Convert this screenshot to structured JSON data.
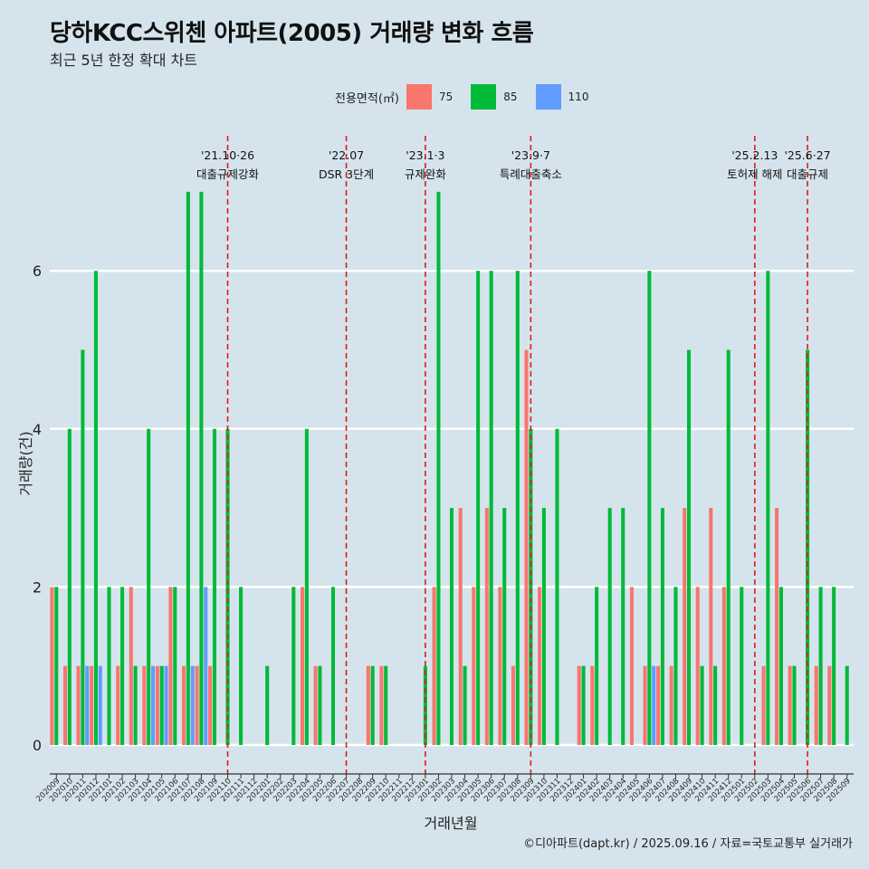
{
  "title": "당하KCC스위첸 아파트(2005) 거래량 변화 흐름",
  "subtitle": "최근 5년 한정 확대 차트",
  "caption": "©디아파트(dapt.kr) / 2025.09.16 / 자료=국토교통부 실거래가",
  "legend": {
    "title": "전용면적(㎡)",
    "items": [
      {
        "label": "75",
        "color": "#f8766d"
      },
      {
        "label": "85",
        "color": "#00ba38"
      },
      {
        "label": "110",
        "color": "#619cff"
      }
    ]
  },
  "chart_data": {
    "type": "bar",
    "xlabel": "거래년월",
    "ylabel": "거래량(건)",
    "ylim": [
      0,
      7
    ],
    "yticks": [
      0,
      2,
      4,
      6
    ],
    "grid": true,
    "legend_position": "top",
    "categories": [
      "202009",
      "202010",
      "202011",
      "202012",
      "202101",
      "202102",
      "202103",
      "202104",
      "202105",
      "202106",
      "202107",
      "202108",
      "202109",
      "202110",
      "202111",
      "202112",
      "202201",
      "202202",
      "202203",
      "202204",
      "202205",
      "202206",
      "202207",
      "202208",
      "202209",
      "202210",
      "202211",
      "202212",
      "202301",
      "202302",
      "202303",
      "202304",
      "202305",
      "202306",
      "202307",
      "202308",
      "202309",
      "202310",
      "202311",
      "202312",
      "202401",
      "202402",
      "202403",
      "202404",
      "202405",
      "202406",
      "202407",
      "202408",
      "202409",
      "202410",
      "202411",
      "202412",
      "202501",
      "202502",
      "202503",
      "202504",
      "202505",
      "202506",
      "202507",
      "202508",
      "202509"
    ],
    "series": [
      {
        "name": "75",
        "color": "#f8766d",
        "values": [
          2,
          1,
          1,
          1,
          0,
          1,
          2,
          1,
          1,
          2,
          1,
          1,
          1,
          0,
          0,
          0,
          0,
          0,
          0,
          2,
          1,
          0,
          0,
          0,
          1,
          1,
          0,
          0,
          0,
          2,
          0,
          3,
          2,
          3,
          2,
          1,
          5,
          2,
          0,
          0,
          1,
          1,
          0,
          0,
          2,
          1,
          1,
          1,
          3,
          2,
          3,
          2,
          0,
          0,
          1,
          3,
          1,
          0,
          1,
          1,
          0
        ]
      },
      {
        "name": "85",
        "color": "#00ba38",
        "values": [
          2,
          4,
          5,
          6,
          2,
          2,
          1,
          4,
          1,
          2,
          7,
          7,
          4,
          4,
          2,
          0,
          1,
          0,
          2,
          4,
          1,
          2,
          0,
          0,
          1,
          1,
          0,
          0,
          1,
          7,
          3,
          1,
          6,
          6,
          3,
          6,
          4,
          3,
          4,
          0,
          1,
          2,
          3,
          3,
          0,
          6,
          3,
          2,
          5,
          1,
          1,
          5,
          2,
          0,
          6,
          2,
          1,
          5,
          2,
          2,
          1
        ]
      },
      {
        "name": "110",
        "color": "#619cff",
        "values": [
          0,
          0,
          1,
          1,
          0,
          0,
          0,
          1,
          1,
          0,
          1,
          2,
          0,
          0,
          0,
          0,
          0,
          0,
          0,
          0,
          0,
          0,
          0,
          0,
          0,
          0,
          0,
          0,
          0,
          0,
          0,
          0,
          0,
          0,
          0,
          0,
          0,
          0,
          0,
          0,
          0,
          0,
          0,
          0,
          0,
          1,
          0,
          0,
          0,
          0,
          0,
          0,
          0,
          0,
          0,
          0,
          0,
          0,
          0,
          0,
          0
        ]
      }
    ],
    "annotations": [
      {
        "date": "'21.10·26",
        "label": "대출규제강화",
        "category": "202110"
      },
      {
        "date": "'22.07",
        "label": "DSR 3단계",
        "category": "202207"
      },
      {
        "date": "'23.1·3",
        "label": "규제완화",
        "category": "202301"
      },
      {
        "date": "'23.9·7",
        "label": "특례대출축소",
        "category": "202309"
      },
      {
        "date": "'25.2.13",
        "label": "토허제 해제",
        "category": "202502"
      },
      {
        "date": "'25.6·27",
        "label": "대출규제",
        "category": "202506"
      }
    ]
  }
}
